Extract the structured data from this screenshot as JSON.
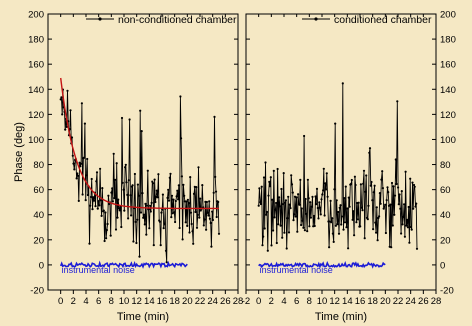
{
  "colors": {
    "background": "#f5e8c4",
    "data": "#000000",
    "fit": "#c41414",
    "noise": "#1c1cd6"
  },
  "chart_data": [
    {
      "type": "line",
      "panel": "left",
      "series": [
        {
          "name": "non-conditioned chamber",
          "noise_seed": 11,
          "style": "line-with-markers",
          "shape": "exp-decay",
          "baseline": 45,
          "amplitude": 104,
          "tau": 2.5,
          "x_range": [
            0,
            25
          ]
        }
      ],
      "fit": {
        "function": "exp-decay",
        "baseline": 45,
        "amplitude": 104,
        "tau": 2.5,
        "x_range": [
          0,
          25
        ],
        "color": "#c41414"
      },
      "noise": {
        "label": "instrumental noise",
        "x_range": [
          0,
          20
        ],
        "y": 0
      },
      "xlabel": "Time (min)",
      "ylabel": "Phase (deg)",
      "xlim": [
        -2,
        28
      ],
      "ylim": [
        -20,
        200
      ],
      "xticks": [
        0,
        2,
        4,
        6,
        8,
        10,
        12,
        14,
        16,
        18,
        20,
        22,
        24,
        26,
        28
      ],
      "yticks": [
        -20,
        0,
        20,
        40,
        60,
        80,
        100,
        120,
        140,
        160,
        180,
        200
      ],
      "legend": "top"
    },
    {
      "type": "line",
      "panel": "right",
      "series": [
        {
          "name": "conditioned chamber",
          "noise_seed": 29,
          "style": "line-with-markers",
          "shape": "flat",
          "baseline": 45,
          "x_range": [
            0,
            25
          ]
        }
      ],
      "noise": {
        "label": "instrumental noise",
        "x_range": [
          0,
          20
        ],
        "y": 0
      },
      "xlabel": "Time (min)",
      "ylabel": "",
      "xlim": [
        -2,
        28
      ],
      "ylim": [
        -20,
        200
      ],
      "xticks": [
        -2,
        0,
        2,
        4,
        6,
        8,
        10,
        12,
        14,
        16,
        18,
        20,
        22,
        24,
        26,
        28
      ],
      "yticks": [
        -20,
        0,
        20,
        40,
        60,
        80,
        100,
        120,
        140,
        160,
        180,
        200
      ],
      "legend": "top"
    }
  ]
}
